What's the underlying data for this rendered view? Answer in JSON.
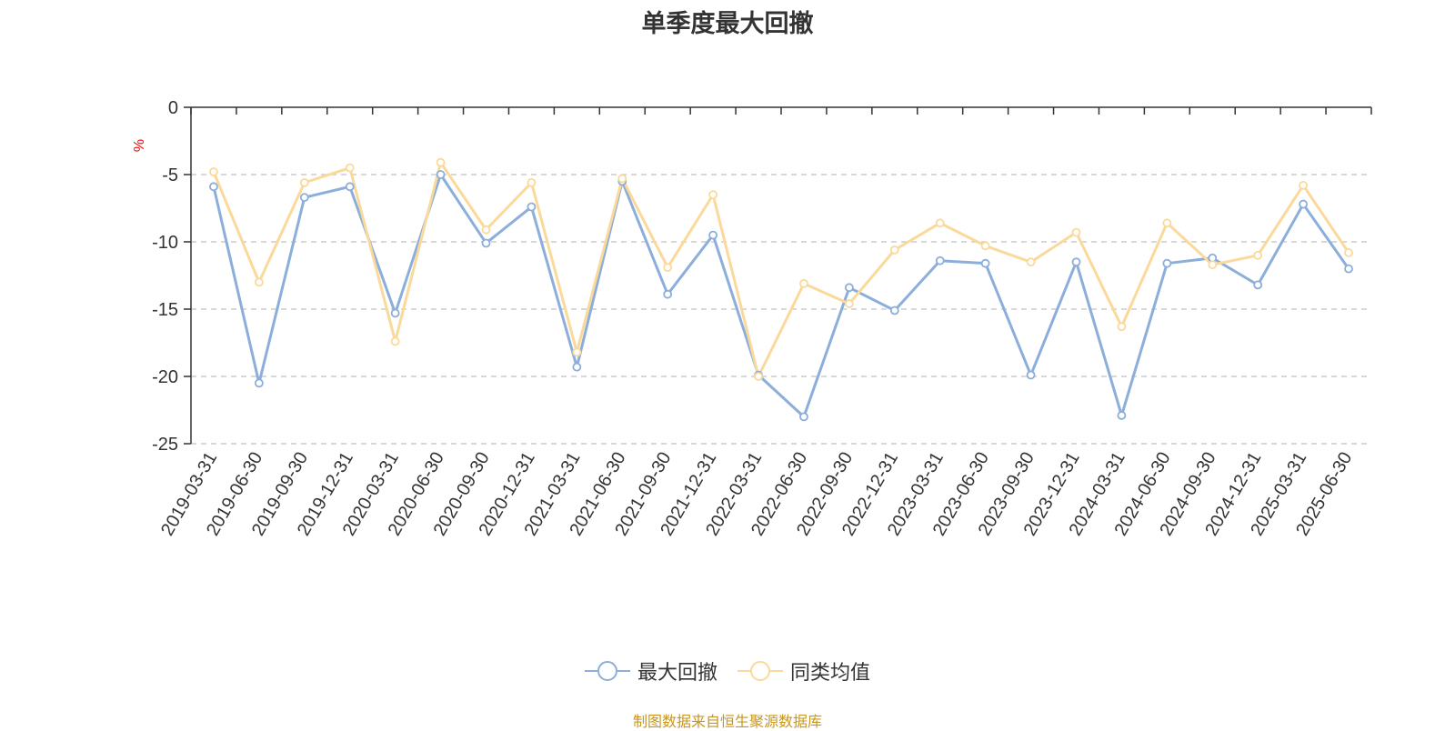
{
  "colors": {
    "series1": "#8caedb",
    "series2": "#fad99a",
    "axis": "#333333",
    "grid": "#cccccc",
    "unit": "#ff0000",
    "source": "#c8961e"
  },
  "legend_icon": "circle-line-marker-icon",
  "source_text": "制图数据来自恒生聚源数据库",
  "chart_data": {
    "type": "line",
    "title": "单季度最大回撤",
    "ylabel": "%",
    "xlabel": "",
    "ylim": [
      -25,
      0
    ],
    "yticks": [
      0,
      -5,
      -10,
      -15,
      -20,
      -25
    ],
    "grid": true,
    "legend_position": "bottom-center",
    "x": [
      "2019-03-31",
      "2019-06-30",
      "2019-09-30",
      "2019-12-31",
      "2020-03-31",
      "2020-06-30",
      "2020-09-30",
      "2020-12-31",
      "2021-03-31",
      "2021-06-30",
      "2021-09-30",
      "2021-12-31",
      "2022-03-31",
      "2022-06-30",
      "2022-09-30",
      "2022-12-31",
      "2023-03-31",
      "2023-06-30",
      "2023-09-30",
      "2023-12-31",
      "2024-03-31",
      "2024-06-30",
      "2024-09-30",
      "2024-12-31",
      "2025-03-31",
      "2025-06-30"
    ],
    "series": [
      {
        "name": "最大回撤",
        "values": [
          -5.9,
          -20.5,
          -6.7,
          -5.9,
          -15.3,
          -5.0,
          -10.1,
          -7.4,
          -19.3,
          -5.5,
          -13.9,
          -9.5,
          -19.9,
          -23.0,
          -13.4,
          -15.1,
          -11.4,
          -11.6,
          -19.9,
          -11.5,
          -22.9,
          -11.6,
          -11.2,
          -13.2,
          -7.2,
          -12.0
        ]
      },
      {
        "name": "同类均值",
        "values": [
          -4.8,
          -13.0,
          -5.6,
          -4.5,
          -17.4,
          -4.1,
          -9.1,
          -5.6,
          -18.2,
          -5.3,
          -11.9,
          -6.5,
          -20.0,
          -13.1,
          -14.6,
          -10.6,
          -8.6,
          -10.3,
          -11.5,
          -9.3,
          -16.3,
          -8.6,
          -11.7,
          -11.0,
          -5.8,
          -10.8
        ]
      }
    ]
  }
}
